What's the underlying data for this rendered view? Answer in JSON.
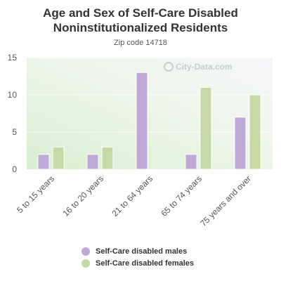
{
  "chart_data": {
    "type": "bar",
    "title": "Age and Sex of Self-Care Disabled Noninstitutionalized Residents",
    "subtitle": "Zip code 14718",
    "categories": [
      "5 to 15 years",
      "16 to 20 years",
      "21 to 64 years",
      "65 to 74 years",
      "75 years and over"
    ],
    "series": [
      {
        "name": "Self-Care disabled males",
        "values": [
          2,
          2,
          13,
          2,
          7
        ],
        "color": "#c0a8d8"
      },
      {
        "name": "Self-Care disabled females",
        "values": [
          3,
          3,
          0,
          11,
          10
        ],
        "color": "#c5d9a5"
      }
    ],
    "yticks": [
      0,
      5,
      10,
      15
    ],
    "ylim": [
      0,
      15
    ],
    "grid": true,
    "legend_position": "bottom",
    "watermark": "City-Data.com"
  }
}
